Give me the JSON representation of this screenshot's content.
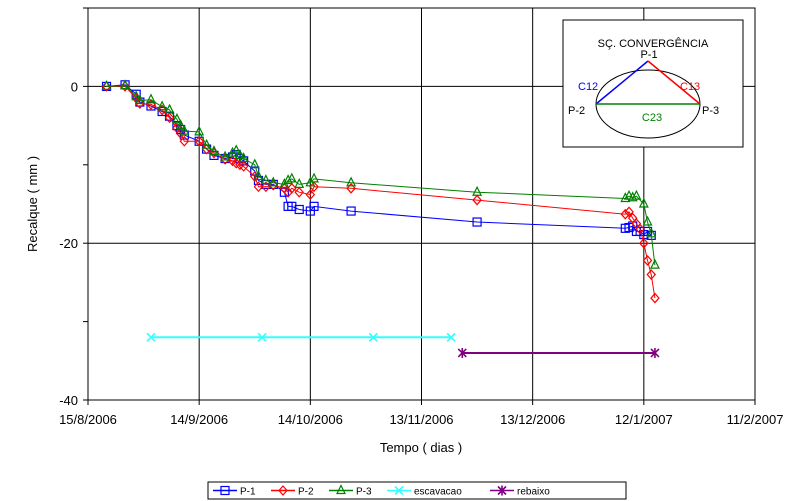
{
  "chart_data": {
    "type": "line",
    "xlabel": "Tempo ( dias )",
    "ylabel": "Recalque ( mm )",
    "xlim": [
      "2006-08-15",
      "2007-02-11"
    ],
    "ylim": [
      -40,
      10
    ],
    "x_ticks": [
      "15/8/2006",
      "14/9/2006",
      "14/10/2006",
      "13/11/2006",
      "13/12/2006",
      "12/1/2007",
      "11/2/2007"
    ],
    "y_ticks": [
      0,
      -20,
      -40
    ],
    "grid": true,
    "legend_position": "bottom",
    "series": [
      {
        "name": "P-1",
        "color": "#0000ff",
        "marker": "square",
        "points": [
          [
            "2006-08-20",
            0.0
          ],
          [
            "2006-08-25",
            0.2
          ],
          [
            "2006-08-28",
            -1.0
          ],
          [
            "2006-08-29",
            -2.0
          ],
          [
            "2006-09-01",
            -2.5
          ],
          [
            "2006-09-04",
            -3.2
          ],
          [
            "2006-09-06",
            -3.8
          ],
          [
            "2006-09-08",
            -5.0
          ],
          [
            "2006-09-09",
            -5.5
          ],
          [
            "2006-09-10",
            -6.2
          ],
          [
            "2006-09-14",
            -7.0
          ],
          [
            "2006-09-16",
            -8.0
          ],
          [
            "2006-09-18",
            -8.8
          ],
          [
            "2006-09-21",
            -9.2
          ],
          [
            "2006-09-23",
            -9.0
          ],
          [
            "2006-09-24",
            -8.7
          ],
          [
            "2006-09-25",
            -9.2
          ],
          [
            "2006-09-26",
            -9.5
          ],
          [
            "2006-09-29",
            -10.8
          ],
          [
            "2006-09-30",
            -12.0
          ],
          [
            "2006-10-02",
            -12.5
          ],
          [
            "2006-10-04",
            -12.5
          ],
          [
            "2006-10-07",
            -13.5
          ],
          [
            "2006-10-08",
            -15.3
          ],
          [
            "2006-10-09",
            -15.3
          ],
          [
            "2006-10-11",
            -15.7
          ],
          [
            "2006-10-14",
            -15.9
          ],
          [
            "2006-10-15",
            -15.3
          ],
          [
            "2006-10-25",
            -15.9
          ],
          [
            "2006-11-28",
            -17.3
          ],
          [
            "2007-01-07",
            -18.1
          ],
          [
            "2007-01-08",
            -18.0
          ],
          [
            "2007-01-09",
            -17.8
          ],
          [
            "2007-01-10",
            -18.5
          ],
          [
            "2007-01-11",
            -18.5
          ],
          [
            "2007-01-12",
            -18.9
          ],
          [
            "2007-01-13",
            -18.5
          ],
          [
            "2007-01-14",
            -19.0
          ]
        ]
      },
      {
        "name": "P-2",
        "color": "#ff0000",
        "marker": "diamond",
        "points": [
          [
            "2006-08-20",
            0.0
          ],
          [
            "2006-08-25",
            0.0
          ],
          [
            "2006-08-28",
            -1.5
          ],
          [
            "2006-08-29",
            -2.2
          ],
          [
            "2006-09-01",
            -2.3
          ],
          [
            "2006-09-04",
            -3.0
          ],
          [
            "2006-09-06",
            -4.0
          ],
          [
            "2006-09-08",
            -5.3
          ],
          [
            "2006-09-09",
            -6.0
          ],
          [
            "2006-09-10",
            -7.0
          ],
          [
            "2006-09-14",
            -7.0
          ],
          [
            "2006-09-16",
            -8.0
          ],
          [
            "2006-09-18",
            -8.5
          ],
          [
            "2006-09-21",
            -9.3
          ],
          [
            "2006-09-23",
            -9.5
          ],
          [
            "2006-09-24",
            -9.8
          ],
          [
            "2006-09-25",
            -10.0
          ],
          [
            "2006-09-26",
            -10.2
          ],
          [
            "2006-09-29",
            -11.5
          ],
          [
            "2006-09-30",
            -12.8
          ],
          [
            "2006-10-02",
            -12.8
          ],
          [
            "2006-10-04",
            -12.6
          ],
          [
            "2006-10-07",
            -13.0
          ],
          [
            "2006-10-08",
            -13.5
          ],
          [
            "2006-10-09",
            -13.0
          ],
          [
            "2006-10-11",
            -13.5
          ],
          [
            "2006-10-14",
            -13.8
          ],
          [
            "2006-10-15",
            -12.8
          ],
          [
            "2006-10-25",
            -13.0
          ],
          [
            "2006-11-28",
            -14.5
          ],
          [
            "2007-01-07",
            -16.3
          ],
          [
            "2007-01-08",
            -16.0
          ],
          [
            "2007-01-09",
            -16.8
          ],
          [
            "2007-01-10",
            -17.5
          ],
          [
            "2007-01-11",
            -18.2
          ],
          [
            "2007-01-12",
            -20.0
          ],
          [
            "2007-01-13",
            -22.2
          ],
          [
            "2007-01-14",
            -24.0
          ],
          [
            "2007-01-15",
            -27.0
          ]
        ]
      },
      {
        "name": "P-3",
        "color": "#008000",
        "marker": "triangle",
        "points": [
          [
            "2006-08-20",
            0.0
          ],
          [
            "2006-08-25",
            0.1
          ],
          [
            "2006-08-28",
            -1.3
          ],
          [
            "2006-08-29",
            -1.8
          ],
          [
            "2006-09-01",
            -1.7
          ],
          [
            "2006-09-04",
            -2.6
          ],
          [
            "2006-09-06",
            -3.0
          ],
          [
            "2006-09-08",
            -4.2
          ],
          [
            "2006-09-09",
            -5.0
          ],
          [
            "2006-09-10",
            -5.7
          ],
          [
            "2006-09-14",
            -5.8
          ],
          [
            "2006-09-16",
            -7.5
          ],
          [
            "2006-09-18",
            -8.3
          ],
          [
            "2006-09-21",
            -9.0
          ],
          [
            "2006-09-23",
            -8.5
          ],
          [
            "2006-09-24",
            -8.2
          ],
          [
            "2006-09-25",
            -8.8
          ],
          [
            "2006-09-26",
            -9.2
          ],
          [
            "2006-09-29",
            -10.0
          ],
          [
            "2006-09-30",
            -11.5
          ],
          [
            "2006-10-02",
            -12.0
          ],
          [
            "2006-10-04",
            -12.3
          ],
          [
            "2006-10-07",
            -12.5
          ],
          [
            "2006-10-08",
            -12.0
          ],
          [
            "2006-10-09",
            -11.8
          ],
          [
            "2006-10-11",
            -12.5
          ],
          [
            "2006-10-14",
            -12.3
          ],
          [
            "2006-10-15",
            -11.8
          ],
          [
            "2006-10-25",
            -12.3
          ],
          [
            "2006-11-28",
            -13.5
          ],
          [
            "2007-01-07",
            -14.3
          ],
          [
            "2007-01-08",
            -14.0
          ],
          [
            "2007-01-09",
            -14.2
          ],
          [
            "2007-01-10",
            -14.0
          ],
          [
            "2007-01-12",
            -15.0
          ],
          [
            "2007-01-13",
            -17.3
          ],
          [
            "2007-01-14",
            -18.8
          ],
          [
            "2007-01-15",
            -22.8
          ]
        ]
      },
      {
        "name": "escavacao",
        "color": "#33ffff",
        "marker": "x",
        "points": [
          [
            "2006-09-01",
            -32
          ],
          [
            "2006-10-01",
            -32
          ],
          [
            "2006-10-31",
            -32
          ],
          [
            "2006-11-21",
            -32
          ]
        ]
      },
      {
        "name": "rebaixo",
        "color": "#800080",
        "marker": "star",
        "points": [
          [
            "2006-11-24",
            -34
          ],
          [
            "2007-01-15",
            -34
          ]
        ]
      }
    ],
    "inset": {
      "title": "SÇ. CONVERGÊNCIA",
      "nodes": [
        "P-1",
        "P-2",
        "P-3"
      ],
      "edges": [
        {
          "label": "C12",
          "color": "#0000ff"
        },
        {
          "label": "C13",
          "color": "#ff0000"
        },
        {
          "label": "C23",
          "color": "#008000"
        }
      ]
    }
  }
}
